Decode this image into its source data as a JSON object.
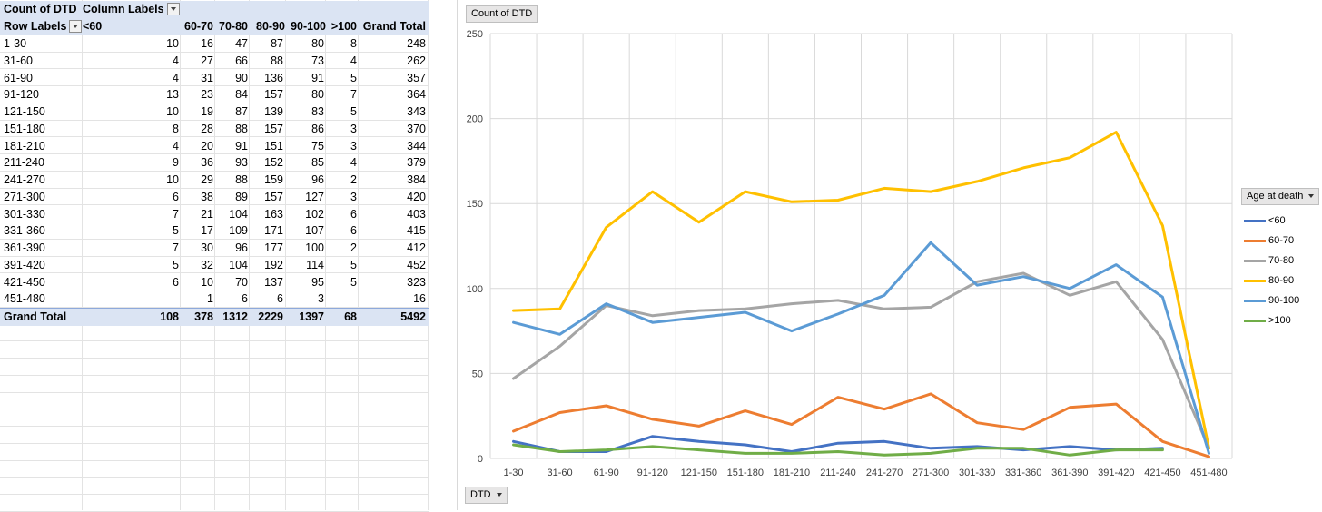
{
  "pivot": {
    "corner_label": "Count of DTD",
    "column_labels_label": "Column Labels",
    "row_labels_label": "Row Labels",
    "col_headers": [
      "<60",
      "60-70",
      "70-80",
      "80-90",
      "90-100",
      ">100",
      "Grand Total"
    ],
    "rows": [
      {
        "label": "1-30",
        "values": [
          "10",
          "16",
          "47",
          "87",
          "80",
          "8",
          "248"
        ]
      },
      {
        "label": "31-60",
        "values": [
          "4",
          "27",
          "66",
          "88",
          "73",
          "4",
          "262"
        ]
      },
      {
        "label": "61-90",
        "values": [
          "4",
          "31",
          "90",
          "136",
          "91",
          "5",
          "357"
        ]
      },
      {
        "label": "91-120",
        "values": [
          "13",
          "23",
          "84",
          "157",
          "80",
          "7",
          "364"
        ]
      },
      {
        "label": "121-150",
        "values": [
          "10",
          "19",
          "87",
          "139",
          "83",
          "5",
          "343"
        ]
      },
      {
        "label": "151-180",
        "values": [
          "8",
          "28",
          "88",
          "157",
          "86",
          "3",
          "370"
        ]
      },
      {
        "label": "181-210",
        "values": [
          "4",
          "20",
          "91",
          "151",
          "75",
          "3",
          "344"
        ]
      },
      {
        "label": "211-240",
        "values": [
          "9",
          "36",
          "93",
          "152",
          "85",
          "4",
          "379"
        ]
      },
      {
        "label": "241-270",
        "values": [
          "10",
          "29",
          "88",
          "159",
          "96",
          "2",
          "384"
        ]
      },
      {
        "label": "271-300",
        "values": [
          "6",
          "38",
          "89",
          "157",
          "127",
          "3",
          "420"
        ]
      },
      {
        "label": "301-330",
        "values": [
          "7",
          "21",
          "104",
          "163",
          "102",
          "6",
          "403"
        ]
      },
      {
        "label": "331-360",
        "values": [
          "5",
          "17",
          "109",
          "171",
          "107",
          "6",
          "415"
        ]
      },
      {
        "label": "361-390",
        "values": [
          "7",
          "30",
          "96",
          "177",
          "100",
          "2",
          "412"
        ]
      },
      {
        "label": "391-420",
        "values": [
          "5",
          "32",
          "104",
          "192",
          "114",
          "5",
          "452"
        ]
      },
      {
        "label": "421-450",
        "values": [
          "6",
          "10",
          "70",
          "137",
          "95",
          "5",
          "323"
        ]
      },
      {
        "label": "451-480",
        "values": [
          "",
          "1",
          "6",
          "6",
          "3",
          "",
          "16"
        ]
      }
    ],
    "grand_total": {
      "label": "Grand Total",
      "values": [
        "108",
        "378",
        "1312",
        "2229",
        "1397",
        "68",
        "5492"
      ]
    }
  },
  "chart_buttons": {
    "value_field": "Count of DTD",
    "axis_field": "DTD",
    "legend_field": "Age at death"
  },
  "chart_data": {
    "type": "line",
    "categories": [
      "1-30",
      "31-60",
      "61-90",
      "91-120",
      "121-150",
      "151-180",
      "181-210",
      "211-240",
      "241-270",
      "271-300",
      "301-330",
      "331-360",
      "361-390",
      "391-420",
      "421-450",
      "451-480"
    ],
    "ylim": [
      0,
      250
    ],
    "yticks": [
      0,
      50,
      100,
      150,
      200,
      250
    ],
    "grid": true,
    "legend_position": "right",
    "series": [
      {
        "name": "<60",
        "color": "#4472c4",
        "values": [
          10,
          4,
          4,
          13,
          10,
          8,
          4,
          9,
          10,
          6,
          7,
          5,
          7,
          5,
          6,
          null
        ]
      },
      {
        "name": "60-70",
        "color": "#ed7d31",
        "values": [
          16,
          27,
          31,
          23,
          19,
          28,
          20,
          36,
          29,
          38,
          21,
          17,
          30,
          32,
          10,
          1
        ]
      },
      {
        "name": "70-80",
        "color": "#a5a5a5",
        "values": [
          47,
          66,
          90,
          84,
          87,
          88,
          91,
          93,
          88,
          89,
          104,
          109,
          96,
          104,
          70,
          6
        ]
      },
      {
        "name": "80-90",
        "color": "#ffc000",
        "values": [
          87,
          88,
          136,
          157,
          139,
          157,
          151,
          152,
          159,
          157,
          163,
          171,
          177,
          192,
          137,
          6
        ]
      },
      {
        "name": "90-100",
        "color": "#5b9bd5",
        "values": [
          80,
          73,
          91,
          80,
          83,
          86,
          75,
          85,
          96,
          127,
          102,
          107,
          100,
          114,
          95,
          3
        ]
      },
      {
        "name": ">100",
        "color": "#70ad47",
        "values": [
          8,
          4,
          5,
          7,
          5,
          3,
          3,
          4,
          2,
          3,
          6,
          6,
          2,
          5,
          5,
          null
        ]
      }
    ]
  }
}
